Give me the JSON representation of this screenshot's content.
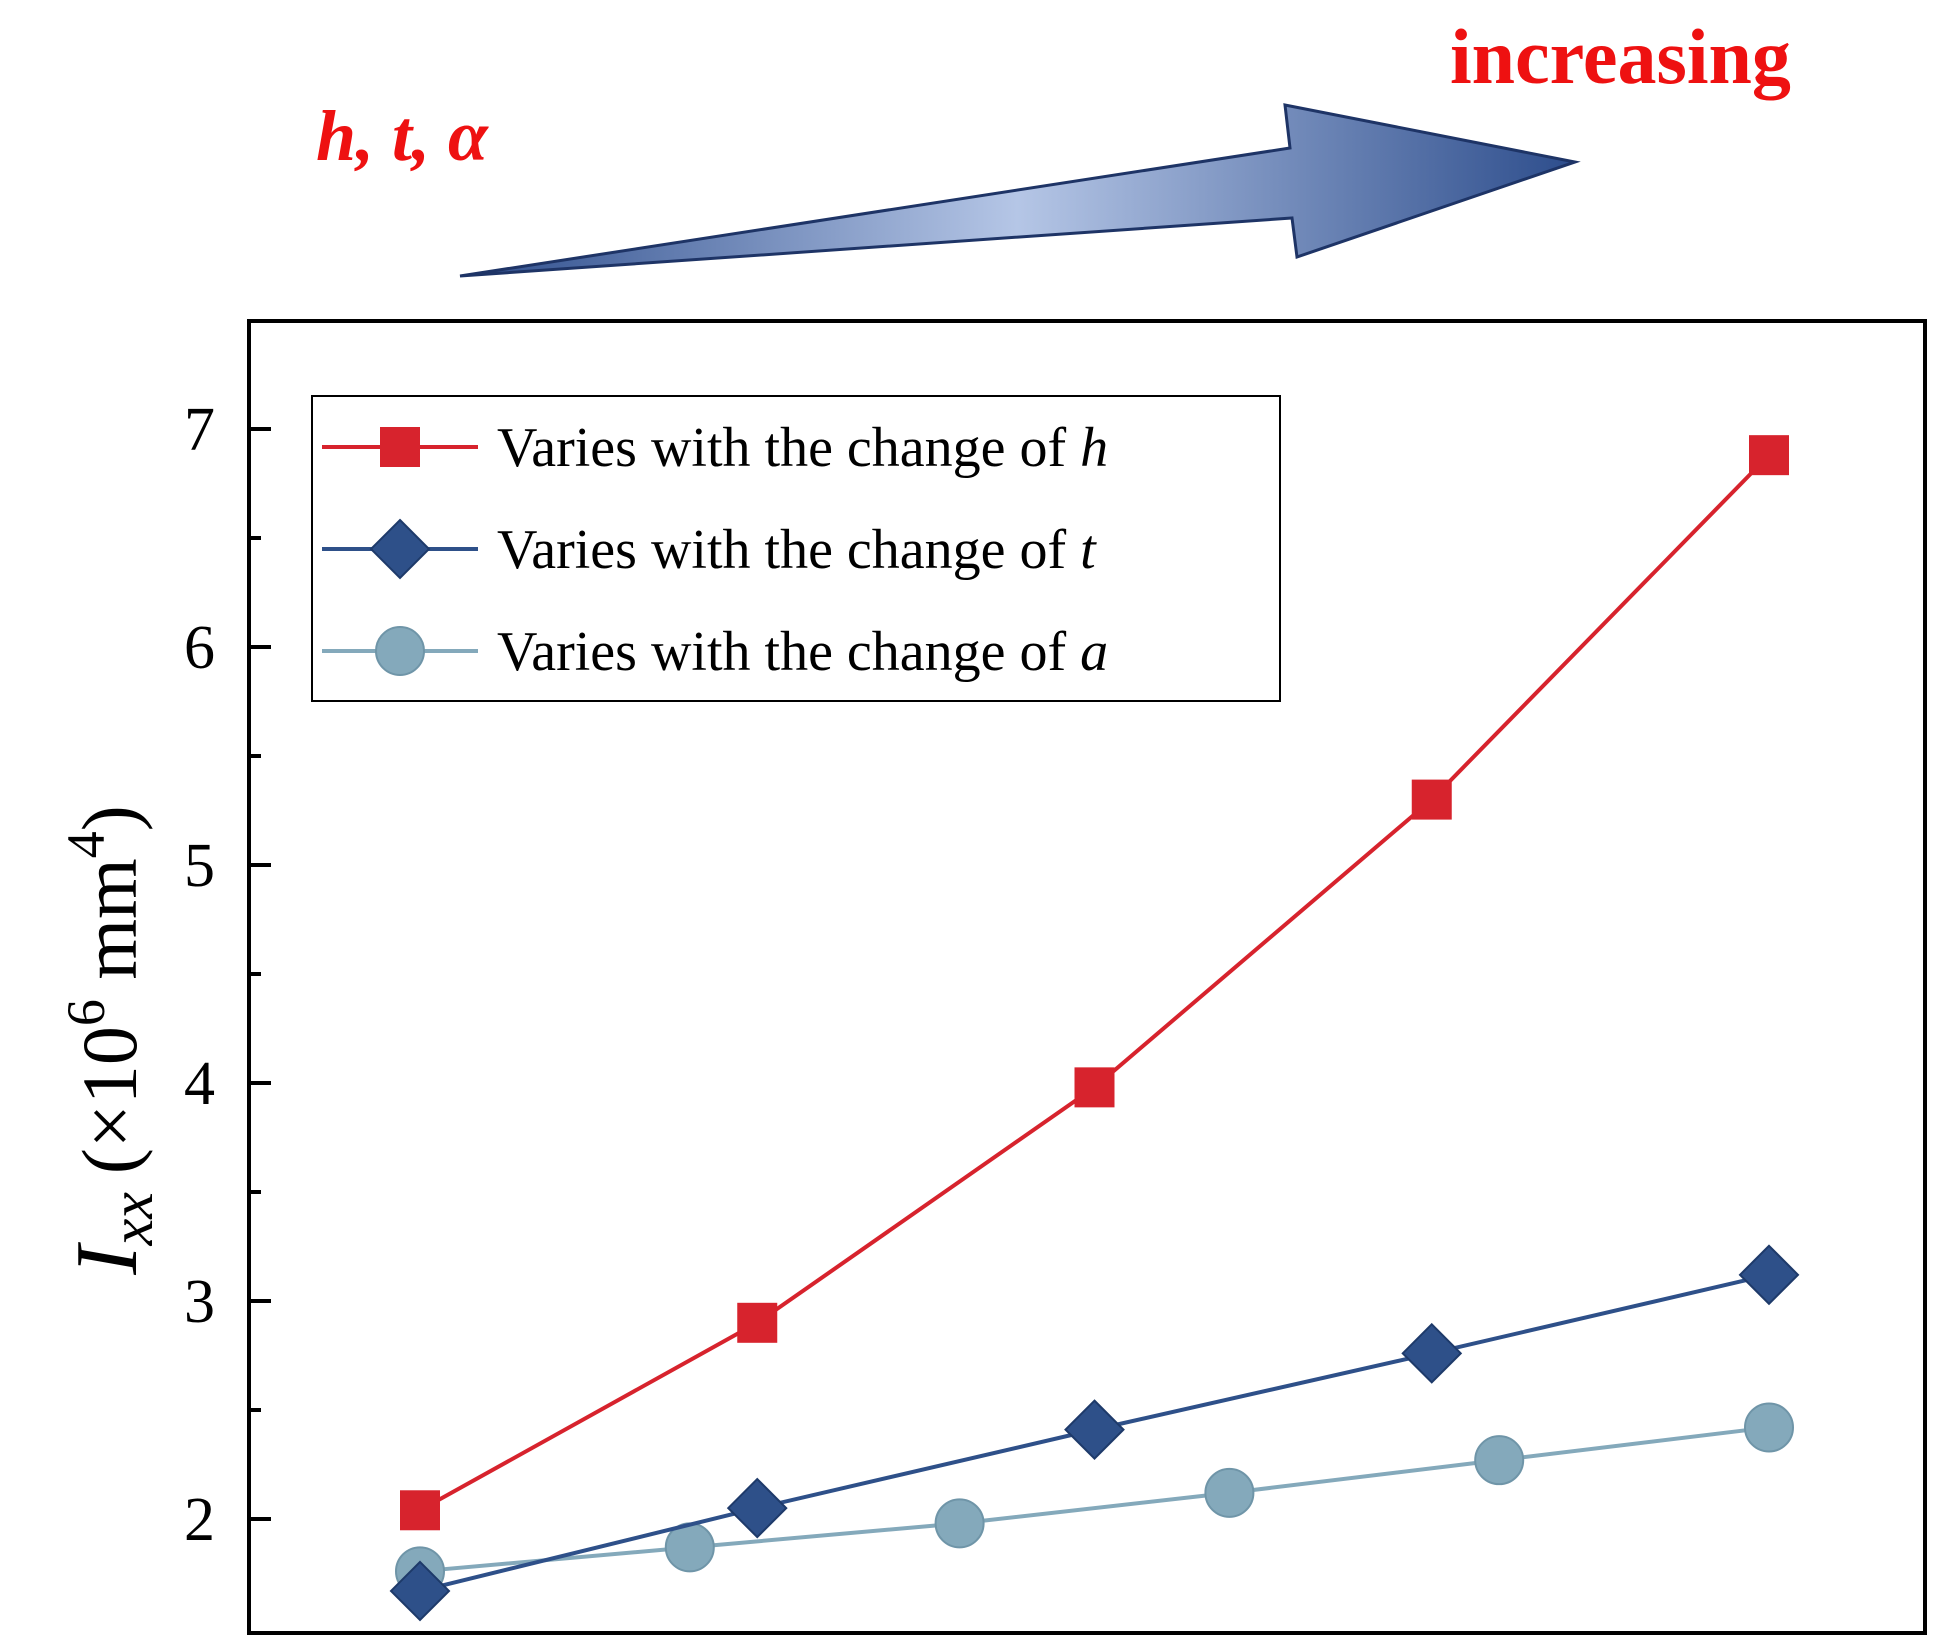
{
  "annotation": {
    "params_text": "h, t, α",
    "direction_text": "increasing",
    "text_color": "#ee1111",
    "arrow_colors": [
      "#2d4d8c",
      "#5b82c8",
      "#b5c6e6"
    ]
  },
  "chart_data": {
    "type": "line",
    "title": "",
    "xlabel": "",
    "ylabel": {
      "symbol": "I",
      "subscript": "xx",
      "unit_prefix": "(×10",
      "unit_exp": "6",
      "unit_mid": " mm",
      "unit_exp2": "4",
      "unit_suffix": ")"
    },
    "ylim": [
      1.45,
      7.5
    ],
    "xlim": [
      0.5,
      5.5
    ],
    "y_ticks": [
      2,
      3,
      4,
      5,
      6,
      7
    ],
    "y_tick_labels": [
      "2",
      "3",
      "4",
      "5",
      "6",
      "7"
    ],
    "x_ticks_visible": false,
    "grid": false,
    "legend_position": "top-left",
    "series": [
      {
        "name": "Varies with the change of h",
        "legend_prefix": "Varies with the change of ",
        "legend_var": "h",
        "marker": "square",
        "color": "#d7232d",
        "x": [
          1,
          2,
          3,
          4,
          5
        ],
        "values": [
          2.04,
          2.9,
          3.98,
          5.3,
          6.88
        ]
      },
      {
        "name": "Varies with the change of t",
        "legend_prefix": "Varies with the change of ",
        "legend_var": "t",
        "marker": "diamond",
        "color": "#2e5089",
        "x": [
          1,
          2,
          3,
          4,
          5
        ],
        "values": [
          1.67,
          2.05,
          2.41,
          2.76,
          3.12
        ]
      },
      {
        "name": "Varies with the change of a",
        "legend_prefix": "Varies with the change of ",
        "legend_var": "a",
        "marker": "circle",
        "color": "#84a9bb",
        "x": [
          1,
          1.8,
          2.6,
          3.4,
          4.2,
          5
        ],
        "values": [
          1.76,
          1.87,
          1.98,
          2.12,
          2.27,
          2.42
        ]
      }
    ]
  }
}
